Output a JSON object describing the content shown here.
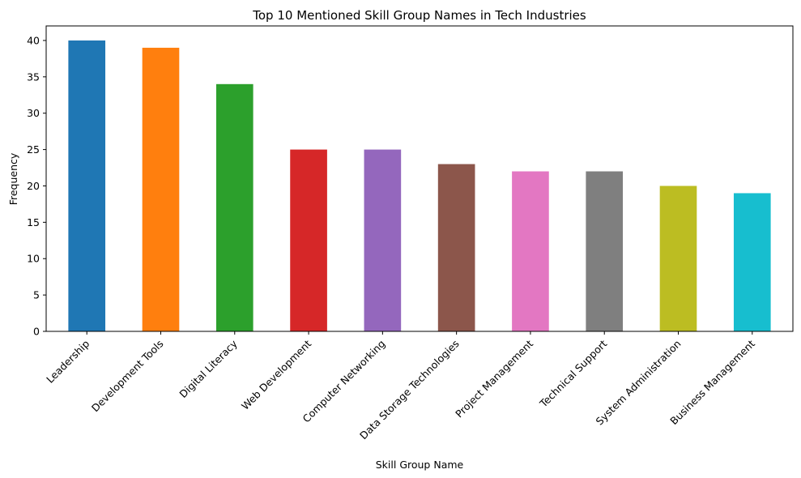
{
  "chart_data": {
    "type": "bar",
    "title": "Top 10 Mentioned Skill Group Names in Tech Industries",
    "xlabel": "Skill Group Name",
    "ylabel": "Frequency",
    "ylim": [
      0,
      42
    ],
    "yticks": [
      0,
      5,
      10,
      15,
      20,
      25,
      30,
      35,
      40
    ],
    "grid": false,
    "legend": "none",
    "categories": [
      "Leadership",
      "Development Tools",
      "Digital Literacy",
      "Web Development",
      "Computer Networking",
      "Data Storage Technologies",
      "Project Management",
      "Technical Support",
      "System Administration",
      "Business Management"
    ],
    "values": [
      40,
      39,
      34,
      25,
      25,
      23,
      22,
      22,
      20,
      19
    ],
    "colors": [
      "#1f77b4",
      "#ff7f0e",
      "#2ca02c",
      "#d62728",
      "#9467bd",
      "#8c564b",
      "#e377c2",
      "#7f7f7f",
      "#bcbd22",
      "#17becf"
    ]
  }
}
